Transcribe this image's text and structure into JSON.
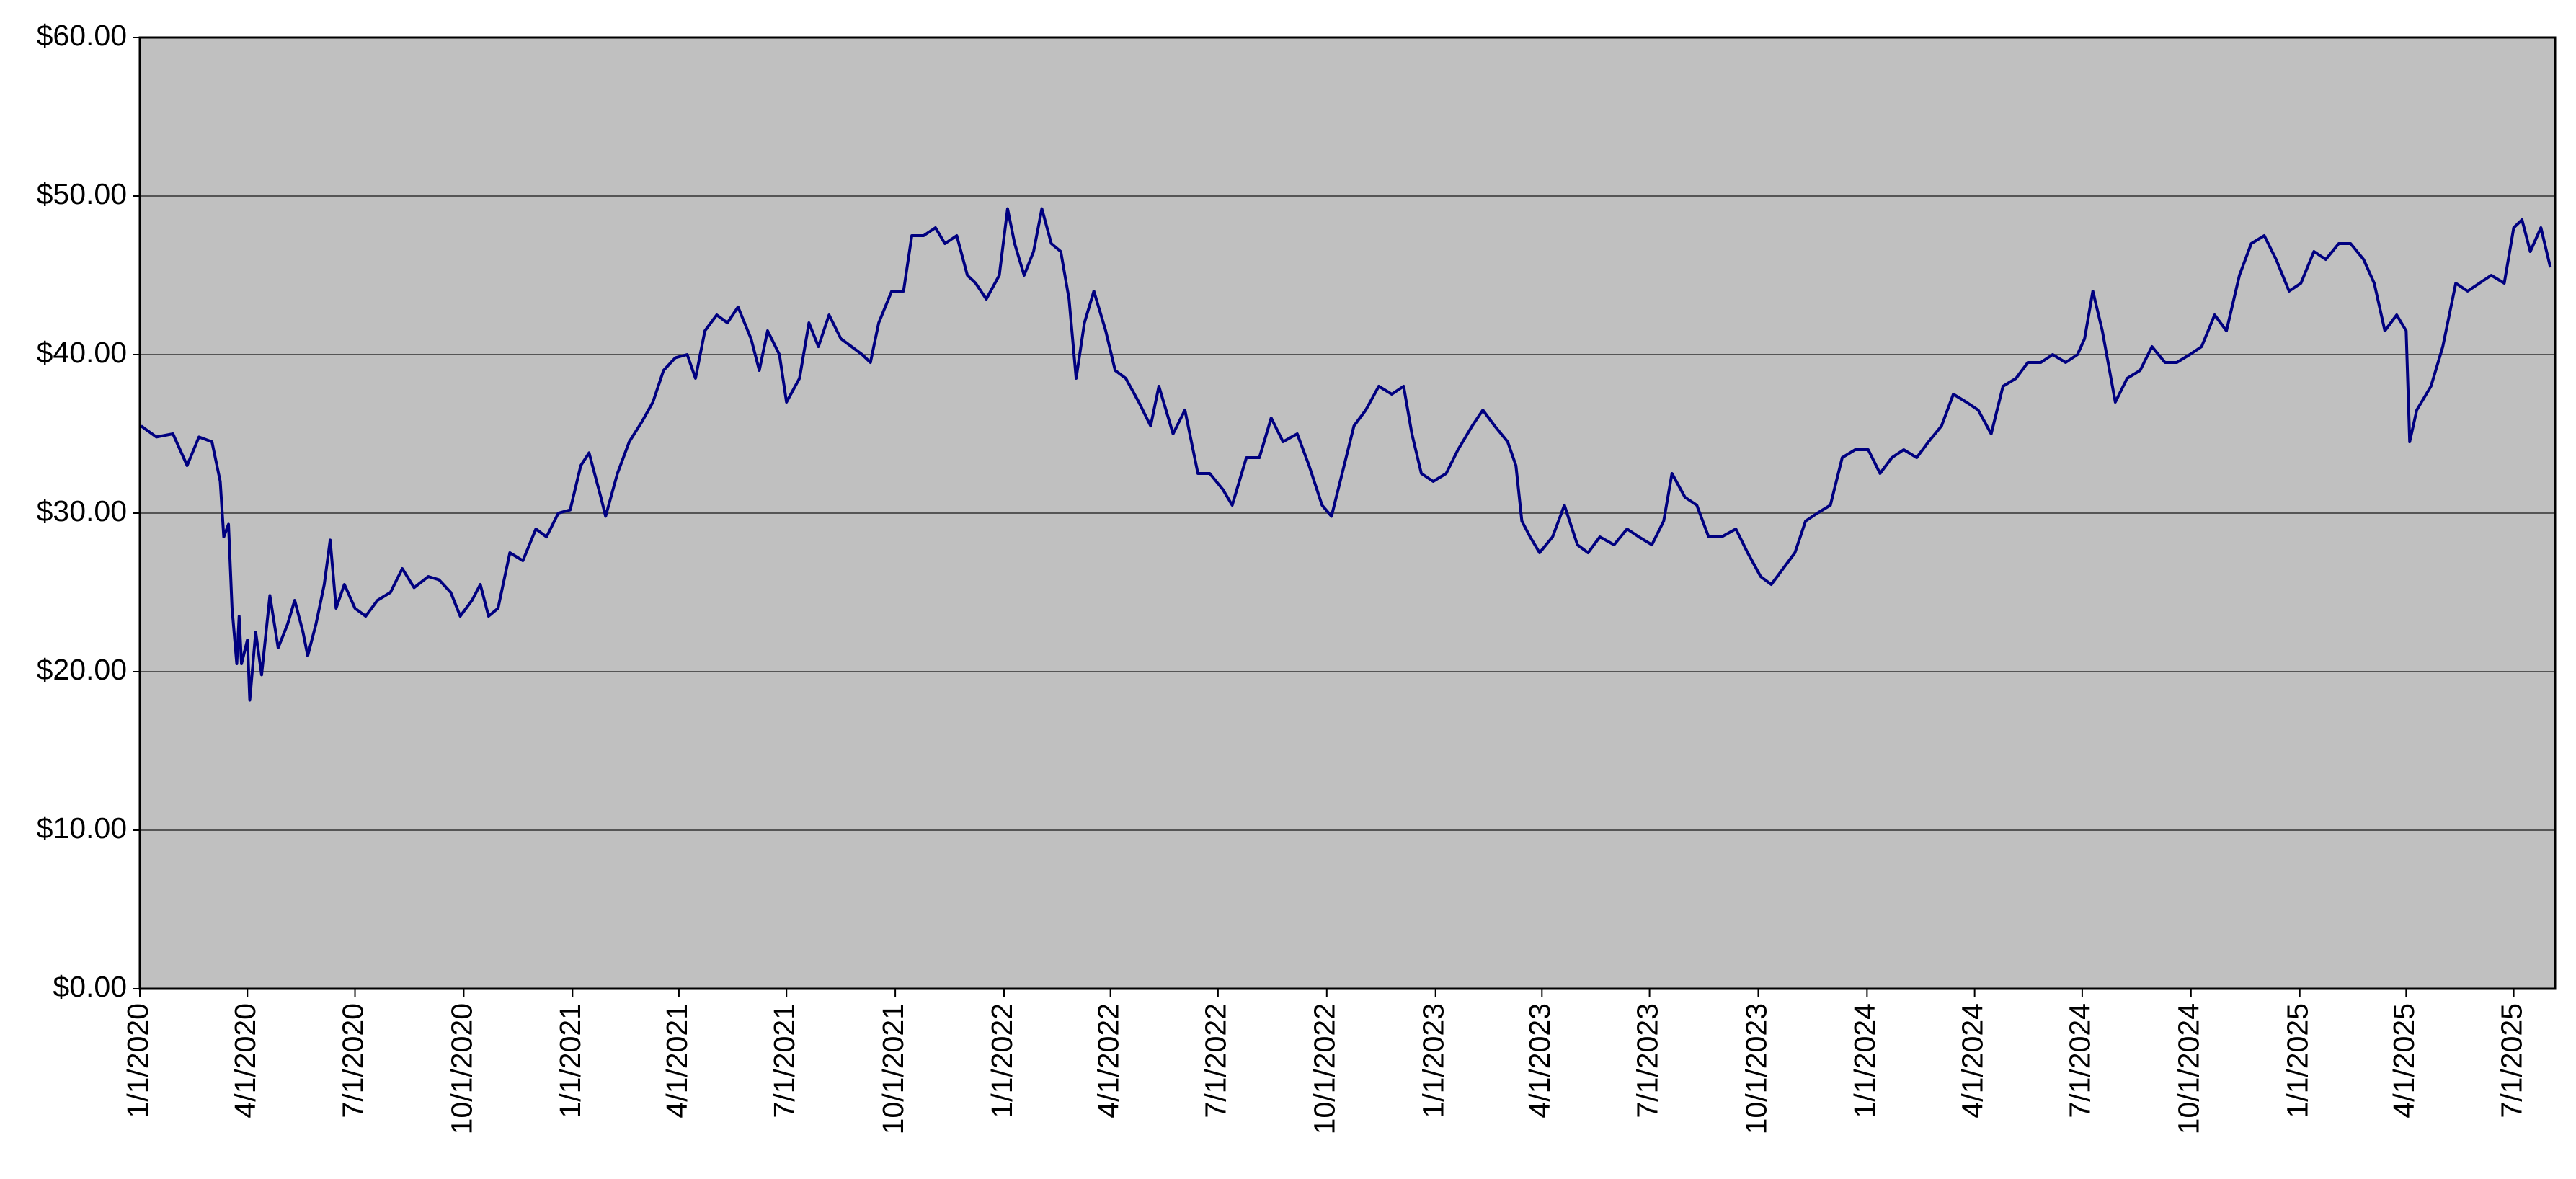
{
  "chart_data": {
    "type": "line",
    "color": "#000080",
    "background": "#c0c0c0",
    "grid": true,
    "ylim": [
      0,
      60
    ],
    "yticks": [
      {
        "value": 0,
        "label": "$0.00"
      },
      {
        "value": 10,
        "label": "$10.00"
      },
      {
        "value": 20,
        "label": "$20.00"
      },
      {
        "value": 30,
        "label": "$30.00"
      },
      {
        "value": 40,
        "label": "$40.00"
      },
      {
        "value": 50,
        "label": "$50.00"
      },
      {
        "value": 60,
        "label": "$60.00"
      }
    ],
    "xlim": [
      "1/1/2020",
      "8/5/2025"
    ],
    "xticks": [
      "1/1/2020",
      "4/1/2020",
      "7/1/2020",
      "10/1/2020",
      "1/1/2021",
      "4/1/2021",
      "7/1/2021",
      "10/1/2021",
      "1/1/2022",
      "4/1/2022",
      "7/1/2022",
      "10/1/2022",
      "1/1/2023",
      "4/1/2023",
      "7/1/2023",
      "10/1/2023",
      "1/1/2024",
      "4/1/2024",
      "7/1/2024",
      "10/1/2024",
      "1/1/2025",
      "4/1/2025",
      "7/1/2025"
    ],
    "x": [
      "1/2/2020",
      "1/15/2020",
      "1/29/2020",
      "2/10/2020",
      "2/20/2020",
      "3/2/2020",
      "3/9/2020",
      "3/12/2020",
      "3/16/2020",
      "3/19/2020",
      "3/23/2020",
      "3/25/2020",
      "3/27/2020",
      "4/1/2020",
      "4/3/2020",
      "4/8/2020",
      "4/13/2020",
      "4/20/2020",
      "4/27/2020",
      "5/5/2020",
      "5/11/2020",
      "5/18/2020",
      "5/22/2020",
      "5/29/2020",
      "6/5/2020",
      "6/10/2020",
      "6/15/2020",
      "6/22/2020",
      "7/1/2020",
      "7/10/2020",
      "7/20/2020",
      "7/31/2020",
      "8/10/2020",
      "8/20/2020",
      "9/1/2020",
      "9/10/2020",
      "9/20/2020",
      "9/28/2020",
      "10/8/2020",
      "10/15/2020",
      "10/22/2020",
      "10/30/2020",
      "11/9/2020",
      "11/20/2020",
      "12/1/2020",
      "12/10/2020",
      "12/20/2020",
      "12/30/2020",
      "1/8/2021",
      "1/15/2021",
      "1/25/2021",
      "1/29/2021",
      "2/8/2021",
      "2/18/2021",
      "3/1/2021",
      "3/10/2021",
      "3/19/2021",
      "3/29/2021",
      "4/8/2021",
      "4/15/2021",
      "4/23/2021",
      "5/3/2021",
      "5/12/2021",
      "5/21/2021",
      "6/1/2021",
      "6/8/2021",
      "6/15/2021",
      "6/25/2021",
      "7/1/2021",
      "7/12/2021",
      "7/20/2021",
      "7/28/2021",
      "8/6/2021",
      "8/16/2021",
      "8/25/2021",
      "9/3/2021",
      "9/10/2021",
      "9/17/2021",
      "9/28/2021",
      "10/8/2021",
      "10/15/2021",
      "10/25/2021",
      "11/4/2021",
      "11/12/2021",
      "11/22/2021",
      "12/1/2021",
      "12/8/2021",
      "12/17/2021",
      "12/28/2021",
      "1/4/2022",
      "1/10/2022",
      "1/18/2022",
      "1/26/2022",
      "2/2/2022",
      "2/10/2022",
      "2/18/2022",
      "2/25/2022",
      "3/3/2022",
      "3/10/2022",
      "3/18/2022",
      "3/28/2022",
      "4/5/2022",
      "4/14/2022",
      "4/25/2022",
      "5/5/2022",
      "5/12/2022",
      "5/24/2022",
      "6/3/2022",
      "6/14/2022",
      "6/24/2022",
      "7/5/2022",
      "7/13/2022",
      "7/25/2022",
      "8/5/2022",
      "8/15/2022",
      "8/25/2022",
      "9/6/2022",
      "9/16/2022",
      "9/27/2022",
      "10/5/2022",
      "10/14/2022",
      "10/24/2022",
      "11/3/2022",
      "11/14/2022",
      "11/25/2022",
      "12/5/2022",
      "12/12/2022",
      "12/20/2022",
      "12/30/2022",
      "1/10/2023",
      "1/20/2023",
      "2/1/2023",
      "2/10/2023",
      "2/20/2023",
      "3/3/2023",
      "3/10/2023",
      "3/15/2023",
      "3/22/2023",
      "3/30/2023",
      "4/10/2023",
      "4/20/2023",
      "5/1/2023",
      "5/10/2023",
      "5/20/2023",
      "6/1/2023",
      "6/12/2023",
      "6/22/2023",
      "7/3/2023",
      "7/13/2023",
      "7/20/2023",
      "7/31/2023",
      "8/10/2023",
      "8/20/2023",
      "8/31/2023",
      "9/12/2023",
      "9/22/2023",
      "10/3/2023",
      "10/12/2023",
      "10/22/2023",
      "11/1/2023",
      "11/10/2023",
      "11/20/2023",
      "12/1/2023",
      "12/11/2023",
      "12/22/2023",
      "1/2/2024",
      "1/12/2024",
      "1/22/2024",
      "2/1/2024",
      "2/12/2024",
      "2/22/2024",
      "3/4/2024",
      "3/14/2024",
      "3/25/2024",
      "4/4/2024",
      "4/15/2024",
      "4/25/2024",
      "5/6/2024",
      "5/16/2024",
      "5/27/2024",
      "6/6/2024",
      "6/17/2024",
      "6/27/2024",
      "7/3/2024",
      "7/10/2024",
      "7/18/2024",
      "7/29/2024",
      "8/8/2024",
      "8/19/2024",
      "8/29/2024",
      "9/9/2024",
      "9/19/2024",
      "9/30/2024",
      "10/10/2024",
      "10/21/2024",
      "10/31/2024",
      "11/11/2024",
      "11/21/2024",
      "12/2/2024",
      "12/12/2024",
      "12/23/2024",
      "1/2/2025",
      "1/13/2025",
      "1/23/2025",
      "2/3/2025",
      "2/13/2025",
      "2/24/2025",
      "3/5/2025",
      "3/14/2025",
      "3/24/2025",
      "4/1/2025",
      "4/4/2025",
      "4/10/2025",
      "4/22/2025",
      "5/2/2025",
      "5/13/2025",
      "5/23/2025",
      "6/2/2025",
      "6/12/2025",
      "6/23/2025",
      "7/1/2025",
      "7/8/2025",
      "7/15/2025",
      "7/24/2025",
      "8/1/2025"
    ],
    "values": [
      35.5,
      34.8,
      35.0,
      33.0,
      34.8,
      34.5,
      32.0,
      28.5,
      29.3,
      24.0,
      20.5,
      23.5,
      20.5,
      22.0,
      18.2,
      22.5,
      19.8,
      24.8,
      21.5,
      23.0,
      24.5,
      22.5,
      21.0,
      23.0,
      25.5,
      28.3,
      24.0,
      25.5,
      24.0,
      23.5,
      24.5,
      25.0,
      26.5,
      25.3,
      26.0,
      25.8,
      25.0,
      23.5,
      24.5,
      25.5,
      23.5,
      24.0,
      27.5,
      27.0,
      29.0,
      28.5,
      30.0,
      30.2,
      33.0,
      33.8,
      31.0,
      29.8,
      32.5,
      34.5,
      35.8,
      37.0,
      39.0,
      39.8,
      40.0,
      38.5,
      41.5,
      42.5,
      42.0,
      43.0,
      41.0,
      39.0,
      41.5,
      40.0,
      37.0,
      38.5,
      42.0,
      40.5,
      42.5,
      41.0,
      40.5,
      40.0,
      39.5,
      42.0,
      44.0,
      44.0,
      47.5,
      47.5,
      48.0,
      47.0,
      47.5,
      45.0,
      44.5,
      43.5,
      45.0,
      49.2,
      47.0,
      45.0,
      46.5,
      49.2,
      47.0,
      46.5,
      43.5,
      38.5,
      42.0,
      44.0,
      41.5,
      39.0,
      38.5,
      37.0,
      35.5,
      38.0,
      35.0,
      36.5,
      32.5,
      32.5,
      31.5,
      30.5,
      33.5,
      33.5,
      36.0,
      34.5,
      35.0,
      33.0,
      30.5,
      29.8,
      32.5,
      35.5,
      36.5,
      38.0,
      37.5,
      38.0,
      35.0,
      32.5,
      32.0,
      32.5,
      34.0,
      35.5,
      36.5,
      35.5,
      34.5,
      33.0,
      29.5,
      28.5,
      27.5,
      28.5,
      30.5,
      28.0,
      27.5,
      28.5,
      28.0,
      29.0,
      28.5,
      28.0,
      29.5,
      32.5,
      31.0,
      30.5,
      28.5,
      28.5,
      29.0,
      27.5,
      26.0,
      25.5,
      26.5,
      27.5,
      29.5,
      30.0,
      30.5,
      33.5,
      34.0,
      34.0,
      32.5,
      33.5,
      34.0,
      33.5,
      34.5,
      35.5,
      37.5,
      37.0,
      36.5,
      35.0,
      38.0,
      38.5,
      39.5,
      39.5,
      40.0,
      39.5,
      40.0,
      41.0,
      44.0,
      41.5,
      37.0,
      38.5,
      39.0,
      40.5,
      39.5,
      39.5,
      40.0,
      40.5,
      42.5,
      41.5,
      45.0,
      47.0,
      47.5,
      46.0,
      44.0,
      44.5,
      46.5,
      46.0,
      47.0,
      47.0,
      46.0,
      44.5,
      41.5,
      42.5,
      41.5,
      34.5,
      36.5,
      38.0,
      40.5,
      44.5,
      44.0,
      44.5,
      45.0,
      44.5,
      48.0,
      48.5,
      46.5,
      48.0,
      45.5
    ]
  }
}
